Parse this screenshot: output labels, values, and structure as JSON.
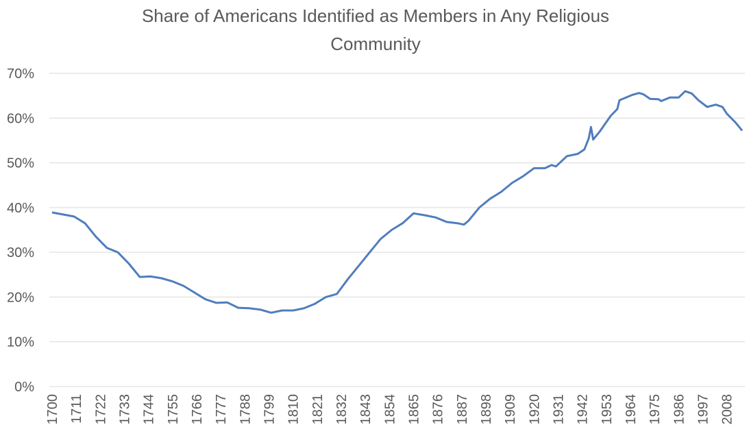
{
  "chart_data": {
    "type": "line",
    "title": [
      "Share of Americans Identified as Members in Any Religious",
      "Community"
    ],
    "x": [
      1700,
      1710,
      1715,
      1720,
      1725,
      1730,
      1735,
      1740,
      1745,
      1750,
      1755,
      1760,
      1765,
      1770,
      1775,
      1780,
      1785,
      1790,
      1795,
      1800,
      1805,
      1810,
      1815,
      1820,
      1825,
      1830,
      1835,
      1840,
      1845,
      1850,
      1855,
      1860,
      1865,
      1870,
      1875,
      1880,
      1885,
      1888,
      1890,
      1895,
      1900,
      1905,
      1910,
      1915,
      1920,
      1925,
      1928,
      1930,
      1935,
      1940,
      1943,
      1945,
      1946,
      1947,
      1950,
      1955,
      1958,
      1959,
      1965,
      1968,
      1970,
      1973,
      1977,
      1978,
      1982,
      1986,
      1989,
      1992,
      1995,
      1999,
      2003,
      2006,
      2008,
      2012,
      2015
    ],
    "values": [
      38.9,
      38.0,
      36.5,
      33.5,
      31.0,
      30.0,
      27.5,
      24.5,
      24.6,
      24.2,
      23.5,
      22.5,
      21.0,
      19.5,
      18.7,
      18.8,
      17.6,
      17.5,
      17.2,
      16.5,
      17.0,
      17.0,
      17.5,
      18.5,
      20.0,
      20.7,
      24.0,
      27.0,
      30.0,
      33.0,
      35.0,
      36.5,
      38.7,
      38.3,
      37.8,
      36.8,
      36.5,
      36.2,
      37.0,
      40.0,
      42.0,
      43.5,
      45.5,
      47.0,
      48.8,
      48.8,
      49.5,
      49.2,
      51.5,
      52.0,
      53.0,
      55.5,
      58.0,
      55.2,
      57.0,
      60.5,
      62.0,
      64.0,
      65.2,
      65.6,
      65.3,
      64.3,
      64.2,
      63.8,
      64.6,
      64.6,
      66.0,
      65.5,
      64.0,
      62.5,
      63.0,
      62.5,
      61.0,
      59.0,
      57.2
    ],
    "color": "#4f7dbd",
    "xlim": [
      1700,
      2015
    ],
    "xticks": [
      1700,
      1711,
      1722,
      1733,
      1744,
      1755,
      1766,
      1777,
      1788,
      1799,
      1810,
      1821,
      1832,
      1843,
      1854,
      1865,
      1876,
      1887,
      1898,
      1909,
      1920,
      1931,
      1942,
      1953,
      1964,
      1975,
      1986,
      1997,
      2008
    ],
    "ylim": [
      0,
      70
    ],
    "yticks": [
      {
        "value": 0,
        "label": "0%"
      },
      {
        "value": 10,
        "label": "10%"
      },
      {
        "value": 20,
        "label": "20%"
      },
      {
        "value": 30,
        "label": "30%"
      },
      {
        "value": 40,
        "label": "40%"
      },
      {
        "value": 50,
        "label": "50%"
      },
      {
        "value": 60,
        "label": "60%"
      },
      {
        "value": 70,
        "label": "70%"
      }
    ],
    "grid": true
  }
}
